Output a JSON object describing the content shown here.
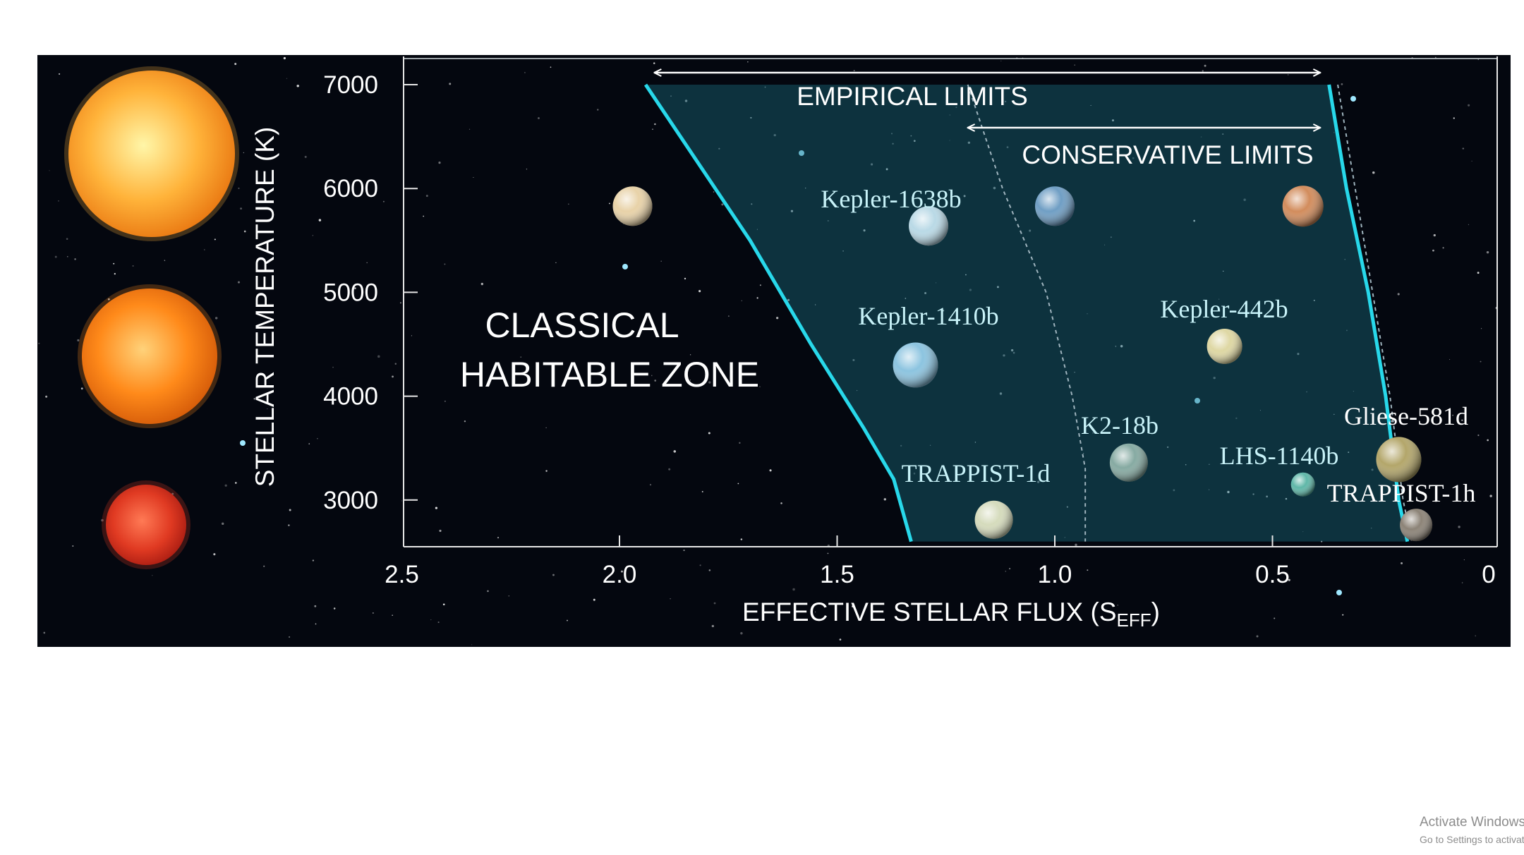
{
  "chart_data": {
    "type": "scatter",
    "xlabel": {
      "main": "EFFECTIVE STELLAR FLUX (S",
      "sub": "EFF",
      "close": ")"
    },
    "ylabel": "STELLAR TEMPERATURE (K)",
    "x_reversed": true,
    "xlim": [
      2.5,
      0
    ],
    "ylim": [
      2600,
      7000
    ],
    "xticks": [
      {
        "value": 2.5,
        "label": "2.5"
      },
      {
        "value": 2.0,
        "label": "2.0"
      },
      {
        "value": 1.5,
        "label": "1.5"
      },
      {
        "value": 1.0,
        "label": "1.0"
      },
      {
        "value": 0.5,
        "label": "0.5"
      },
      {
        "value": 0,
        "label": "0"
      }
    ],
    "yticks": [
      {
        "value": 7000,
        "label": "7000"
      },
      {
        "value": 6000,
        "label": "6000"
      },
      {
        "value": 5000,
        "label": "5000"
      },
      {
        "value": 4000,
        "label": "4000"
      },
      {
        "value": 3000,
        "label": "3000"
      }
    ],
    "zone_label": [
      "CLASSICAL",
      "HABITABLE ZONE"
    ],
    "ranges": [
      {
        "label": "EMPIRICAL LIMITS",
        "from": 1.92,
        "to": 0.39,
        "temp": 6950
      },
      {
        "label": "CONSERVATIVE LIMITS",
        "from": 1.2,
        "to": 0.39,
        "temp": 6500
      }
    ],
    "boundaries": {
      "empirical_inner": [
        [
          1.94,
          7000
        ],
        [
          1.7,
          5500
        ],
        [
          1.56,
          4500
        ],
        [
          1.44,
          3700
        ],
        [
          1.37,
          3200
        ],
        [
          1.33,
          2600
        ]
      ],
      "empirical_outer": [
        [
          0.37,
          7000
        ],
        [
          0.33,
          6000
        ],
        [
          0.28,
          5000
        ],
        [
          0.24,
          4000
        ],
        [
          0.21,
          3000
        ],
        [
          0.19,
          2600
        ]
      ],
      "conservative_inner": [
        [
          1.2,
          7000
        ],
        [
          1.12,
          6000
        ],
        [
          1.02,
          5000
        ],
        [
          0.96,
          4000
        ],
        [
          0.93,
          3300
        ],
        [
          0.93,
          2600
        ]
      ],
      "conservative_outer": [
        [
          0.35,
          7000
        ],
        [
          0.31,
          6000
        ],
        [
          0.27,
          5000
        ],
        [
          0.23,
          4000
        ],
        [
          0.2,
          3000
        ],
        [
          0.18,
          2600
        ]
      ]
    },
    "planets": [
      {
        "name": "Kepler-1638b",
        "x": 1.29,
        "y": 5640,
        "color": "#b9d9e6"
      },
      {
        "name": "Kepler-1410b",
        "x": 1.32,
        "y": 4300,
        "color": "#8cc4e0"
      },
      {
        "name": "Kepler-442b",
        "x": 0.61,
        "y": 4480,
        "color": "#ded7a3"
      },
      {
        "name": "K2-18b",
        "x": 0.83,
        "y": 3360,
        "color": "#86aaa2"
      },
      {
        "name": "TRAPPIST-1d",
        "x": 1.14,
        "y": 2810,
        "color": "#d5dbbc"
      },
      {
        "name": "LHS-1140b",
        "x": 0.43,
        "y": 3150,
        "color": "#5fb7a8"
      },
      {
        "name": "Gliese-581d",
        "x": 0.21,
        "y": 3390,
        "color": "#b3a66a"
      },
      {
        "name": "TRAPPIST-1h",
        "x": 0.17,
        "y": 2760,
        "color": "#8c8377"
      }
    ],
    "reference_planets": [
      {
        "name": "venus-like",
        "x": 1.97,
        "y": 5830,
        "color": "#e8d2a8"
      },
      {
        "name": "earth-like",
        "x": 1.0,
        "y": 5830,
        "color": "#6f9ec4"
      },
      {
        "name": "mars-like",
        "x": 0.43,
        "y": 5830,
        "color": "#d28c5c"
      }
    ],
    "stars": [
      {
        "name": "yellow-star",
        "color": "#ffb33a"
      },
      {
        "name": "orange-star",
        "color": "#ff8a1a"
      },
      {
        "name": "red-star",
        "color": "#e03a22"
      }
    ]
  },
  "watermark": {
    "title": "Activate Windows",
    "subtitle": "Go to Settings to activate Windows."
  }
}
